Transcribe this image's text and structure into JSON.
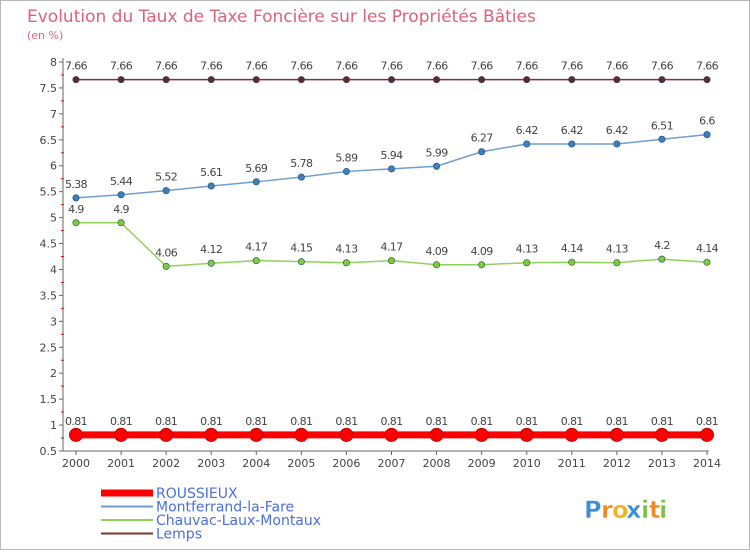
{
  "chart_data": {
    "type": "line",
    "title": "Evolution du Taux de Taxe Foncière sur les Propriétés Bâties",
    "ylabel": "(en %)",
    "xlabel": "",
    "ylim": [
      0.5,
      8
    ],
    "yticks": [
      0.5,
      1,
      1.5,
      2,
      2.5,
      3,
      3.5,
      4,
      4.5,
      5,
      5.5,
      6,
      6.5,
      7,
      7.5,
      8
    ],
    "ytick_labels": [
      "0.5",
      "1",
      "1.5",
      "2",
      "2.5",
      "3",
      "3.5",
      "4",
      "4.5",
      "5",
      "5.5",
      "6",
      "6.5",
      "7",
      "7.5",
      "8"
    ],
    "categories": [
      "2000",
      "2001",
      "2002",
      "2003",
      "2004",
      "2005",
      "2006",
      "2007",
      "2008",
      "2009",
      "2010",
      "2011",
      "2012",
      "2013",
      "2014"
    ],
    "grid": false,
    "legend_position": "bottom-left",
    "series": [
      {
        "name": "ROUSSIEUX",
        "color": "#ff0000",
        "emphasis": true,
        "values": [
          0.81,
          0.81,
          0.81,
          0.81,
          0.81,
          0.81,
          0.81,
          0.81,
          0.81,
          0.81,
          0.81,
          0.81,
          0.81,
          0.81,
          0.81
        ],
        "labels": [
          "0.81",
          "0.81",
          "0.81",
          "0.81",
          "0.81",
          "0.81",
          "0.81",
          "0.81",
          "0.81",
          "0.81",
          "0.81",
          "0.81",
          "0.81",
          "0.81",
          "0.81"
        ]
      },
      {
        "name": "Montferrand-la-Fare",
        "color": "#6e9fce",
        "marker": "#3a7fc0",
        "values": [
          5.38,
          5.44,
          5.52,
          5.61,
          5.69,
          5.78,
          5.89,
          5.94,
          5.99,
          6.27,
          6.42,
          6.42,
          6.42,
          6.51,
          6.6
        ],
        "labels": [
          "5.38",
          "5.44",
          "5.52",
          "5.61",
          "5.69",
          "5.78",
          "5.89",
          "5.94",
          "5.99",
          "6.27",
          "6.42",
          "6.42",
          "6.42",
          "6.51",
          "6.6"
        ]
      },
      {
        "name": "Chauvac-Laux-Montaux",
        "color": "#8fd35a",
        "marker": "#7ccc3a",
        "values": [
          4.9,
          4.9,
          4.06,
          4.12,
          4.17,
          4.15,
          4.13,
          4.17,
          4.09,
          4.09,
          4.13,
          4.14,
          4.13,
          4.2,
          4.14
        ],
        "labels": [
          "4.9",
          "4.9",
          "4.06",
          "4.12",
          "4.17",
          "4.15",
          "4.13",
          "4.17",
          "4.09",
          "4.09",
          "4.13",
          "4.14",
          "4.13",
          "4.2",
          "4.14"
        ]
      },
      {
        "name": "Lemps",
        "color": "#7a3434",
        "marker": "#6a2525",
        "values": [
          7.66,
          7.66,
          7.66,
          7.66,
          7.66,
          7.66,
          7.66,
          7.66,
          7.66,
          7.66,
          7.66,
          7.66,
          7.66,
          7.66,
          7.66
        ],
        "labels": [
          "7.66",
          "7.66",
          "7.66",
          "7.66",
          "7.66",
          "7.66",
          "7.66",
          "7.66",
          "7.66",
          "7.66",
          "7.66",
          "7.66",
          "7.66",
          "7.66",
          "7.66"
        ]
      }
    ]
  },
  "brand": {
    "logo_letters": [
      "P",
      "r",
      "o",
      "x",
      "i",
      "t",
      "i"
    ],
    "logo_colors": [
      "#3b8fd6",
      "#f08a1c",
      "#f2b01e",
      "#3b8fd6",
      "#7cc242",
      "#f08a1c",
      "#7cc242"
    ]
  }
}
